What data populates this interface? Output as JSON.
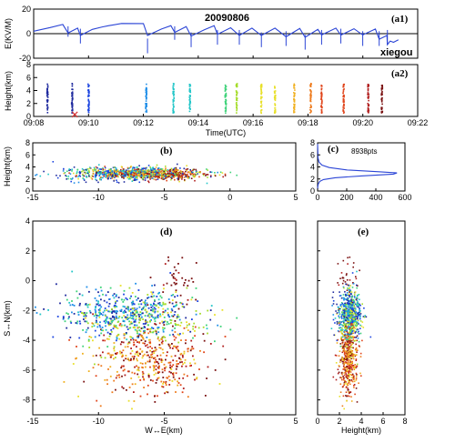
{
  "figure": {
    "date_label": "20090806",
    "station_label": "xiegou",
    "points_label": "8938pts"
  },
  "colors": {
    "waveform": "#2b45d6",
    "cross_marker": "#d42a2a",
    "palette": [
      "#1f2a9e",
      "#1c45e0",
      "#1e8ee8",
      "#22c6c8",
      "#3fd37a",
      "#a5dd2a",
      "#e8e02a",
      "#f0b020",
      "#ee7a1c",
      "#e0441a",
      "#b01c1c",
      "#7a1010"
    ]
  },
  "chart_data": [
    {
      "id": "a1",
      "panel_label": "(a1)",
      "type": "line",
      "xlabel": "",
      "ylabel": "E(KV/M)",
      "xlim": [
        9.1333,
        9.3667
      ],
      "ylim": [
        -20,
        20
      ],
      "yticks": [
        -20,
        0,
        20
      ],
      "x_label_ticks": [
        "09:08",
        "09:10",
        "09:12",
        "09:14",
        "09:16",
        "09:18",
        "09:20",
        "09:22"
      ],
      "recovery": [
        [
          9.1333,
          2
        ],
        [
          9.1433,
          5
        ],
        [
          9.151,
          7.5
        ],
        [
          9.1542,
          0.5
        ],
        [
          9.16,
          4.5
        ],
        [
          9.1617,
          -1.5
        ],
        [
          9.169,
          3.5
        ],
        [
          9.175,
          5.5
        ],
        [
          9.179,
          6.5
        ],
        [
          9.1867,
          8.3
        ],
        [
          9.2,
          8.2
        ],
        [
          9.2025,
          -1.5
        ],
        [
          9.211,
          3.8
        ],
        [
          9.2167,
          6.5
        ],
        [
          9.219,
          1.0
        ],
        [
          9.226,
          5.8
        ],
        [
          9.229,
          -2.0
        ],
        [
          9.237,
          3.2
        ],
        [
          9.243,
          6.5
        ],
        [
          9.245,
          -0.5
        ],
        [
          9.253,
          4.8
        ],
        [
          9.2583,
          -1.5
        ],
        [
          9.266,
          4.5
        ],
        [
          9.2717,
          -1.5
        ],
        [
          9.28,
          4.5
        ],
        [
          9.2867,
          -2.5
        ],
        [
          9.295,
          4.2
        ],
        [
          9.2983,
          -3.0
        ],
        [
          9.306,
          3.5
        ],
        [
          9.3083,
          -1.0
        ],
        [
          9.317,
          4.5
        ],
        [
          9.32,
          -1.2
        ],
        [
          9.328,
          4.0
        ],
        [
          9.3333,
          -1.0
        ],
        [
          9.341,
          3.8
        ],
        [
          9.3433,
          -4.5
        ],
        [
          9.348,
          -1.5
        ],
        [
          9.3483,
          -9
        ],
        [
          9.35,
          -6
        ],
        [
          9.352,
          -7
        ],
        [
          9.355,
          -5
        ]
      ],
      "flashes": [
        9.1542,
        9.1617,
        9.2025,
        9.219,
        9.229,
        9.245,
        9.2583,
        9.2717,
        9.2867,
        9.2983,
        9.3083,
        9.32,
        9.3333,
        9.3433,
        9.3483
      ],
      "flash_depth": [
        -2.5,
        -8,
        -16,
        -5,
        -11,
        -9,
        -9,
        -11,
        -10,
        -13,
        -9,
        -8,
        -10,
        -10,
        -9
      ]
    },
    {
      "id": "a2",
      "panel_label": "(a2)",
      "type": "scatter",
      "xlabel": "Time(UTC)",
      "ylabel": "Height(km)",
      "xlim": [
        9.1333,
        9.3667
      ],
      "ylim": [
        0,
        8
      ],
      "yticks": [
        0,
        2,
        4,
        6,
        8
      ],
      "xtick_labels": [
        "09:08",
        "09:10",
        "09:12",
        "09:14",
        "09:16",
        "09:18",
        "09:20",
        "09:22"
      ],
      "flash_times": [
        9.1417,
        9.1567,
        9.1667,
        9.2017,
        9.2183,
        9.2283,
        9.25,
        9.2567,
        9.2717,
        9.28,
        9.2917,
        9.3017,
        9.3083,
        9.3217,
        9.3367,
        9.345
      ],
      "cross_marker": {
        "x": 9.1583,
        "y": 0.3
      }
    },
    {
      "id": "b",
      "panel_label": "(b)",
      "type": "scatter",
      "xlabel": "",
      "ylabel": "Height(km)",
      "xlim": [
        -15,
        5
      ],
      "ylim": [
        0,
        8
      ],
      "xticks": [
        -15,
        -10,
        -5,
        0,
        5
      ],
      "yticks": [
        0,
        2,
        4,
        6,
        8
      ]
    },
    {
      "id": "c",
      "panel_label": "(c)",
      "type": "line",
      "xlabel": "",
      "ylabel": "",
      "xlim": [
        0,
        600
      ],
      "ylim": [
        0,
        8
      ],
      "xticks": [
        0,
        200,
        400,
        600
      ],
      "yticks": [
        0,
        2,
        4,
        6,
        8
      ],
      "points_label": "8938pts",
      "histogram": [
        [
          0,
          0.2
        ],
        [
          2,
          0.8
        ],
        [
          5,
          1.2
        ],
        [
          15,
          1.6
        ],
        [
          40,
          1.9
        ],
        [
          120,
          2.2
        ],
        [
          300,
          2.5
        ],
        [
          520,
          2.8
        ],
        [
          545,
          3.0
        ],
        [
          420,
          3.2
        ],
        [
          200,
          3.5
        ],
        [
          80,
          3.9
        ],
        [
          30,
          4.3
        ],
        [
          10,
          4.8
        ],
        [
          3,
          5.5
        ],
        [
          0,
          7.8
        ]
      ]
    },
    {
      "id": "d",
      "panel_label": "(d)",
      "type": "scatter",
      "xlabel": "W↔E(km)",
      "ylabel": "S↔N(km)",
      "xlim": [
        -15,
        5
      ],
      "ylim": [
        -9,
        4
      ],
      "xticks": [
        -15,
        -10,
        -5,
        0,
        5
      ],
      "yticks": [
        -8,
        -6,
        -4,
        -2,
        0,
        2,
        4
      ]
    },
    {
      "id": "e",
      "panel_label": "(e)",
      "type": "scatter",
      "xlabel": "Height(km)",
      "ylabel": "",
      "xlim": [
        0,
        8
      ],
      "ylim": [
        -9,
        4
      ],
      "xticks": [
        0,
        2,
        4,
        6,
        8
      ],
      "yticks": [
        -8,
        -6,
        -4,
        -2,
        0,
        2,
        4
      ]
    }
  ]
}
